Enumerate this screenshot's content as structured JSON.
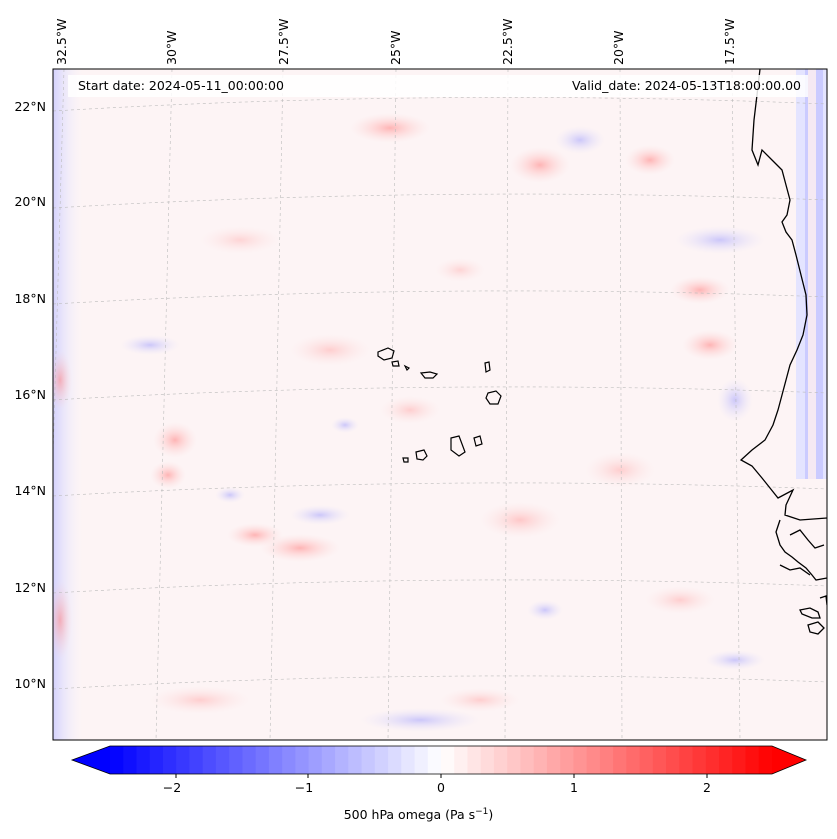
{
  "header": {
    "start_date": "Start date: 2024-05-11_00:00:00",
    "valid_date": "Valid_date: 2024-05-13T18:00:00.00"
  },
  "lon_labels": [
    "32.5°W",
    "30°W",
    "27.5°W",
    "25°W",
    "22.5°W",
    "20°W",
    "17.5°W"
  ],
  "lat_labels": [
    "22°N",
    "20°N",
    "18°N",
    "16°N",
    "14°N",
    "12°N",
    "10°N"
  ],
  "colorbar": {
    "label": "500 hPa omega (Pa s",
    "label_sup": "−1",
    "label_end": ")",
    "ticks": [
      "−2",
      "−1",
      "0",
      "1",
      "2"
    ],
    "range": [
      -2.5,
      2.5
    ],
    "cmap": "bwr",
    "low_color": "#0000ff",
    "high_color": "#ff0000"
  },
  "map": {
    "projection": "lambert conformal",
    "field": "500 hPa omega",
    "gridlines": true,
    "coastline_color": "#000000"
  }
}
